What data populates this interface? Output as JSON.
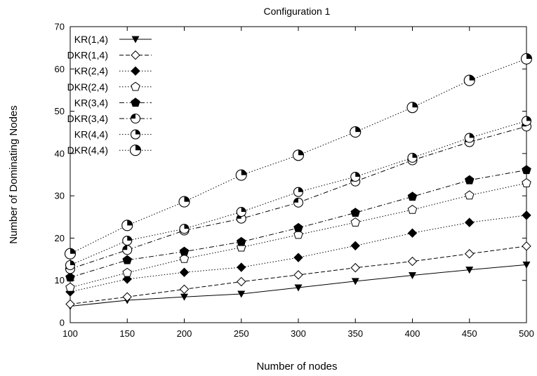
{
  "chart_data": {
    "type": "line",
    "title": "Configuration 1",
    "xlabel": "Number of nodes",
    "ylabel": "Number of Dominating Nodes",
    "xlim": [
      100,
      500
    ],
    "ylim": [
      0,
      70
    ],
    "xticks": [
      100,
      150,
      200,
      250,
      300,
      350,
      400,
      450,
      500
    ],
    "yticks": [
      0,
      10,
      20,
      30,
      40,
      50,
      60,
      70
    ],
    "grid": false,
    "legend_position": "top-left",
    "x": [
      100,
      150,
      200,
      250,
      300,
      350,
      400,
      450,
      500
    ],
    "series": [
      {
        "name": "KR(1,4)",
        "marker": "triangle-down-filled",
        "line": "solid",
        "values": [
          3.9,
          5.3,
          6.1,
          6.8,
          8.3,
          9.8,
          11.2,
          12.5,
          13.7
        ]
      },
      {
        "name": "DKR(1,4)",
        "marker": "diamond-open",
        "line": "dashed",
        "values": [
          4.4,
          6.1,
          7.9,
          9.7,
          11.3,
          13.0,
          14.5,
          16.3,
          18.1
        ]
      },
      {
        "name": "KR(2,4)",
        "marker": "diamond-filled",
        "line": "dotted",
        "values": [
          7.3,
          10.3,
          11.9,
          13.1,
          15.4,
          18.2,
          21.2,
          23.7,
          25.4
        ]
      },
      {
        "name": "DKR(2,4)",
        "marker": "pentagon-open",
        "line": "dotted",
        "values": [
          8.3,
          11.8,
          15.1,
          17.8,
          20.8,
          23.7,
          26.7,
          30.1,
          33.0
        ]
      },
      {
        "name": "KR(3,4)",
        "marker": "pentagon-filled",
        "line": "dashdot",
        "values": [
          10.7,
          14.8,
          16.8,
          19.1,
          22.4,
          26.0,
          29.8,
          33.7,
          36.1
        ]
      },
      {
        "name": "DKR(3,4)",
        "marker": "circle-quarter-a",
        "line": "dashdot",
        "values": [
          12.7,
          17.2,
          21.8,
          24.6,
          28.4,
          33.4,
          38.4,
          42.7,
          46.4
        ]
      },
      {
        "name": "KR(4,4)",
        "marker": "circle-quarter-b",
        "line": "dotted",
        "values": [
          13.6,
          19.4,
          22.2,
          26.2,
          30.9,
          34.5,
          39.0,
          43.7,
          47.7
        ]
      },
      {
        "name": "DKR(4,4)",
        "marker": "circle-quarter-c",
        "line": "dotted",
        "values": [
          16.3,
          23.0,
          28.6,
          34.9,
          39.6,
          45.1,
          50.9,
          57.3,
          62.4
        ]
      }
    ]
  }
}
